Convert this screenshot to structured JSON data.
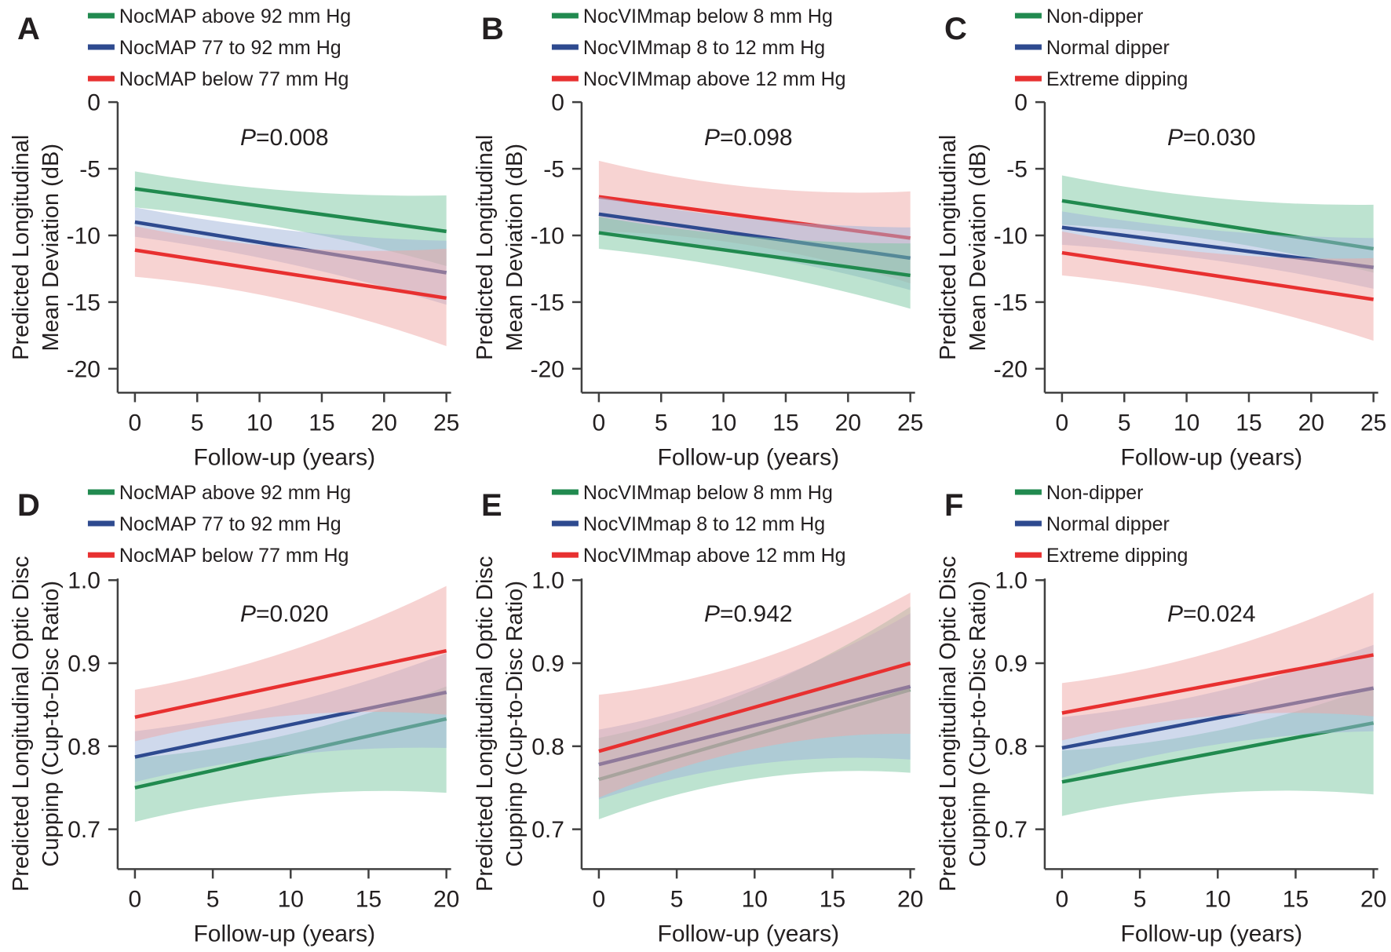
{
  "figure": {
    "background": "#ffffff",
    "description_labels": {
      "x_axis_title": "Follow-up (years)"
    }
  },
  "colors": {
    "green": {
      "line": "#218a4f",
      "band": "#7cc7a1"
    },
    "blue": {
      "line": "#2e4a8f",
      "band": "#9fb3d9"
    },
    "red": {
      "line": "#e83030",
      "band": "#f0a8a6"
    },
    "axis": "#404040",
    "text": "#231f20"
  },
  "band_opacity": 0.5,
  "chart_data": [
    {
      "letter": "A",
      "type": "line",
      "stat_prefix": "P",
      "stat_value": "=0.008",
      "xlabel": "Follow-up (years)",
      "ylabel_lines": [
        "Predicted Longitudinal",
        "Mean Deviation (dB)"
      ],
      "xlim": [
        0,
        25
      ],
      "x_ticks": [
        0,
        5,
        10,
        15,
        20,
        25
      ],
      "ylim": [
        0,
        -21.8
      ],
      "y_ticks": [
        {
          "v": 0,
          "label": "0"
        },
        {
          "v": -5,
          "label": "-5"
        },
        {
          "v": -10,
          "label": "-10"
        },
        {
          "v": -15,
          "label": "-15"
        },
        {
          "v": -20,
          "label": "-20"
        }
      ],
      "grid": false,
      "legend_position": "top",
      "draw_order": [
        0,
        1,
        2
      ],
      "series": [
        {
          "name": "NocMAP above 92 mm Hg",
          "color": "green",
          "x": [
            0,
            25
          ],
          "y": [
            -6.5,
            -9.7
          ],
          "band_upper": [
            -5.2,
            -7.0
          ],
          "band_lower": [
            -7.9,
            -12.3
          ]
        },
        {
          "name": "NocMAP 77 to 92 mm Hg",
          "color": "blue",
          "x": [
            0,
            25
          ],
          "y": [
            -9.0,
            -12.8
          ],
          "band_upper": [
            -7.9,
            -10.4
          ],
          "band_lower": [
            -10.1,
            -15.2
          ]
        },
        {
          "name": "NocMAP below 77 mm Hg",
          "color": "red",
          "x": [
            0,
            25
          ],
          "y": [
            -11.1,
            -14.7
          ],
          "band_upper": [
            -9.3,
            -11.0
          ],
          "band_lower": [
            -13.1,
            -18.3
          ]
        }
      ]
    },
    {
      "letter": "B",
      "type": "line",
      "stat_prefix": "P",
      "stat_value": "=0.098",
      "xlabel": "Follow-up (years)",
      "ylabel_lines": [
        "Predicted Longitudinal",
        "Mean Deviation (dB)"
      ],
      "xlim": [
        0,
        25
      ],
      "x_ticks": [
        0,
        5,
        10,
        15,
        20,
        25
      ],
      "ylim": [
        0,
        -21.8
      ],
      "y_ticks": [
        {
          "v": 0,
          "label": "0"
        },
        {
          "v": -5,
          "label": "-5"
        },
        {
          "v": -10,
          "label": "-10"
        },
        {
          "v": -15,
          "label": "-15"
        },
        {
          "v": -20,
          "label": "-20"
        }
      ],
      "grid": false,
      "legend_position": "top",
      "draw_order": [
        2,
        1,
        0
      ],
      "series": [
        {
          "name": "NocVIMmap below 8 mm Hg",
          "color": "green",
          "x": [
            0,
            25
          ],
          "y": [
            -9.8,
            -13.0
          ],
          "band_upper": [
            -8.6,
            -10.6
          ],
          "band_lower": [
            -11.0,
            -15.5
          ]
        },
        {
          "name": "NocVIMmap 8 to 12 mm Hg",
          "color": "blue",
          "x": [
            0,
            25
          ],
          "y": [
            -8.4,
            -11.7
          ],
          "band_upper": [
            -7.1,
            -9.4
          ],
          "band_lower": [
            -9.9,
            -14.1
          ]
        },
        {
          "name": "NocVIMmap above 12 mm Hg",
          "color": "red",
          "x": [
            0,
            25
          ],
          "y": [
            -7.1,
            -10.2
          ],
          "band_upper": [
            -4.4,
            -6.7
          ],
          "band_lower": [
            -9.7,
            -13.6
          ]
        }
      ]
    },
    {
      "letter": "C",
      "type": "line",
      "stat_prefix": "P",
      "stat_value": "=0.030",
      "xlabel": "Follow-up (years)",
      "ylabel_lines": [
        "Predicted Longitudinal",
        "Mean Deviation (dB)"
      ],
      "xlim": [
        0,
        25
      ],
      "x_ticks": [
        0,
        5,
        10,
        15,
        20,
        25
      ],
      "ylim": [
        0,
        -21.8
      ],
      "y_ticks": [
        {
          "v": 0,
          "label": "0"
        },
        {
          "v": -5,
          "label": "-5"
        },
        {
          "v": -10,
          "label": "-10"
        },
        {
          "v": -15,
          "label": "-15"
        },
        {
          "v": -20,
          "label": "-20"
        }
      ],
      "grid": false,
      "legend_position": "top",
      "draw_order": [
        0,
        1,
        2
      ],
      "series": [
        {
          "name": "Non-dipper",
          "color": "green",
          "x": [
            0,
            25
          ],
          "y": [
            -7.4,
            -11.0
          ],
          "band_upper": [
            -5.5,
            -7.7
          ],
          "band_lower": [
            -9.2,
            -12.8
          ]
        },
        {
          "name": "Normal dipper",
          "color": "blue",
          "x": [
            0,
            25
          ],
          "y": [
            -9.4,
            -12.4
          ],
          "band_upper": [
            -8.2,
            -10.2
          ],
          "band_lower": [
            -10.7,
            -14.0
          ]
        },
        {
          "name": "Extreme dipping",
          "color": "red",
          "x": [
            0,
            25
          ],
          "y": [
            -11.3,
            -14.8
          ],
          "band_upper": [
            -9.7,
            -11.7
          ],
          "band_lower": [
            -13.0,
            -17.9
          ]
        }
      ]
    },
    {
      "letter": "D",
      "type": "line",
      "stat_prefix": "P",
      "stat_value": "=0.020",
      "xlabel": "Follow-up (years)",
      "ylabel_lines": [
        "Predicted Longitudinal Optic Disc",
        "Cuppinp (Cup-to-Disc Ratio)"
      ],
      "xlim": [
        0,
        20
      ],
      "x_ticks": [
        0,
        5,
        10,
        15,
        20
      ],
      "ylim": [
        1.002,
        0.652
      ],
      "y_ticks": [
        {
          "v": 1.0,
          "label": "1.0"
        },
        {
          "v": 0.9,
          "label": "0.9"
        },
        {
          "v": 0.8,
          "label": "0.8"
        },
        {
          "v": 0.7,
          "label": "0.7"
        }
      ],
      "grid": false,
      "legend_position": "top",
      "draw_order": [
        0,
        1,
        2
      ],
      "series": [
        {
          "name": "NocMAP above 92 mm Hg",
          "color": "green",
          "x": [
            0,
            20
          ],
          "y": [
            0.75,
            0.833
          ],
          "band_upper": [
            0.786,
            0.872
          ],
          "band_lower": [
            0.709,
            0.744
          ]
        },
        {
          "name": "NocMAP 77 to 92 mm Hg",
          "color": "blue",
          "x": [
            0,
            20
          ],
          "y": [
            0.787,
            0.865
          ],
          "band_upper": [
            0.818,
            0.912
          ],
          "band_lower": [
            0.757,
            0.798
          ]
        },
        {
          "name": "NocMAP below 77 mm Hg",
          "color": "red",
          "x": [
            0,
            20
          ],
          "y": [
            0.835,
            0.915
          ],
          "band_upper": [
            0.868,
            0.993
          ],
          "band_lower": [
            0.806,
            0.838
          ]
        }
      ]
    },
    {
      "letter": "E",
      "type": "line",
      "stat_prefix": "P",
      "stat_value": "=0.942",
      "xlabel": "Follow-up (years)",
      "ylabel_lines": [
        "Predicted Longitudinal Optic Disc",
        "Cuppinp (Cup-to-Disc Ratio)"
      ],
      "xlim": [
        0,
        20
      ],
      "x_ticks": [
        0,
        5,
        10,
        15,
        20
      ],
      "ylim": [
        1.002,
        0.652
      ],
      "y_ticks": [
        {
          "v": 1.0,
          "label": "1.0"
        },
        {
          "v": 0.9,
          "label": "0.9"
        },
        {
          "v": 0.8,
          "label": "0.8"
        },
        {
          "v": 0.7,
          "label": "0.7"
        }
      ],
      "grid": false,
      "legend_position": "top",
      "draw_order": [
        0,
        1,
        2
      ],
      "series": [
        {
          "name": "NocVIMmap below 8 mm Hg",
          "color": "green",
          "x": [
            0,
            20
          ],
          "y": [
            0.76,
            0.868
          ],
          "band_upper": [
            0.81,
            0.968
          ],
          "band_lower": [
            0.712,
            0.768
          ]
        },
        {
          "name": "NocVIMmap 8 to 12 mm Hg",
          "color": "blue",
          "x": [
            0,
            20
          ],
          "y": [
            0.778,
            0.872
          ],
          "band_upper": [
            0.82,
            0.96
          ],
          "band_lower": [
            0.736,
            0.784
          ]
        },
        {
          "name": "NocVIMmap above 12 mm Hg",
          "color": "red",
          "x": [
            0,
            20
          ],
          "y": [
            0.794,
            0.9
          ],
          "band_upper": [
            0.862,
            0.985
          ],
          "band_lower": [
            0.738,
            0.815
          ]
        }
      ]
    },
    {
      "letter": "F",
      "type": "line",
      "stat_prefix": "P",
      "stat_value": "=0.024",
      "xlabel": "Follow-up (years)",
      "ylabel_lines": [
        "Predicted Longitudinal Optic Disc",
        "Cuppinp (Cup-to-Disc Ratio)"
      ],
      "xlim": [
        0,
        20
      ],
      "x_ticks": [
        0,
        5,
        10,
        15,
        20
      ],
      "ylim": [
        1.002,
        0.652
      ],
      "y_ticks": [
        {
          "v": 1.0,
          "label": "1.0"
        },
        {
          "v": 0.9,
          "label": "0.9"
        },
        {
          "v": 0.8,
          "label": "0.8"
        },
        {
          "v": 0.7,
          "label": "0.7"
        }
      ],
      "grid": false,
      "legend_position": "top",
      "draw_order": [
        0,
        1,
        2
      ],
      "series": [
        {
          "name": "Non-dipper",
          "color": "green",
          "x": [
            0,
            20
          ],
          "y": [
            0.757,
            0.828
          ],
          "band_upper": [
            0.795,
            0.872
          ],
          "band_lower": [
            0.716,
            0.742
          ]
        },
        {
          "name": "Normal dipper",
          "color": "blue",
          "x": [
            0,
            20
          ],
          "y": [
            0.798,
            0.87
          ],
          "band_upper": [
            0.835,
            0.922
          ],
          "band_lower": [
            0.762,
            0.818
          ]
        },
        {
          "name": "Extreme dipping",
          "color": "red",
          "x": [
            0,
            20
          ],
          "y": [
            0.84,
            0.91
          ],
          "band_upper": [
            0.876,
            0.985
          ],
          "band_lower": [
            0.807,
            0.836
          ]
        }
      ]
    }
  ]
}
